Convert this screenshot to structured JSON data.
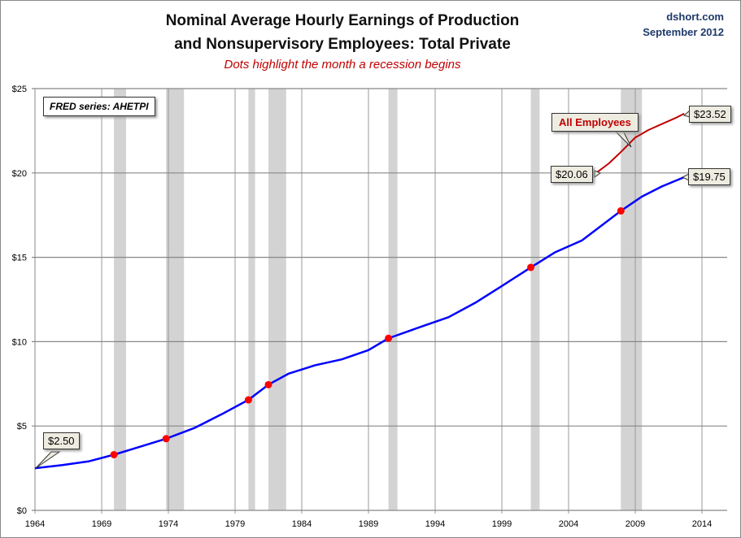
{
  "header": {
    "title_line1": "Nominal Average Hourly Earnings of Production",
    "title_line2": "and Nonsupervisory Employees: Total Private",
    "subtitle": "Dots highlight the month a recession begins",
    "source": "dshort.com",
    "date": "September 2012"
  },
  "fred_label": "FRED series: AHETPI",
  "callouts": {
    "start": "$2.50",
    "prod_end": "$19.75",
    "all_start": "$20.06",
    "all_end": "$23.52",
    "all_label": "All Employees"
  },
  "chart_data": {
    "type": "line",
    "title": "Nominal Average Hourly Earnings of Production and Nonsupervisory Employees: Total Private",
    "xlim": [
      1964,
      2014
    ],
    "ylim": [
      0,
      25
    ],
    "grid": true,
    "x_ticks": [
      "1964",
      "1969",
      "1974",
      "1979",
      "1984",
      "1989",
      "1994",
      "1999",
      "2004",
      "2009",
      "2014"
    ],
    "y_ticks": [
      "$0",
      "$5",
      "$10",
      "$15",
      "$20",
      "$25"
    ],
    "recessions": [
      [
        1969.92,
        1970.83
      ],
      [
        1973.83,
        1975.17
      ],
      [
        1980.0,
        1980.5
      ],
      [
        1981.5,
        1982.83
      ],
      [
        1990.5,
        1991.17
      ],
      [
        2001.17,
        2001.83
      ],
      [
        2007.92,
        2009.5
      ]
    ],
    "series": [
      {
        "name": "Production and Nonsupervisory",
        "color": "#0000ff",
        "x": [
          1964,
          1966,
          1968,
          1969.92,
          1972,
          1973.83,
          1976,
          1978,
          1980,
          1981.5,
          1983,
          1985,
          1987,
          1989,
          1990.5,
          1993,
          1995,
          1997,
          1999,
          2001.17,
          2003,
          2005,
          2007.92,
          2009.5,
          2011,
          2012.67
        ],
        "y": [
          2.5,
          2.68,
          2.9,
          3.3,
          3.8,
          4.25,
          4.9,
          5.7,
          6.55,
          7.45,
          8.1,
          8.6,
          8.95,
          9.5,
          10.2,
          10.9,
          11.45,
          12.3,
          13.3,
          14.4,
          15.3,
          16.0,
          17.75,
          18.6,
          19.2,
          19.75
        ]
      },
      {
        "name": "All Employees",
        "color": "#c00000",
        "x": [
          2006.17,
          2007,
          2008,
          2009,
          2010,
          2011,
          2012,
          2012.67
        ],
        "y": [
          20.06,
          20.55,
          21.3,
          22.1,
          22.55,
          22.9,
          23.25,
          23.52
        ]
      }
    ],
    "recession_start_dots": [
      [
        1969.92,
        3.3
      ],
      [
        1973.83,
        4.25
      ],
      [
        1980.0,
        6.55
      ],
      [
        1981.5,
        7.45
      ],
      [
        1990.5,
        10.2
      ],
      [
        2001.17,
        14.4
      ],
      [
        2007.92,
        17.75
      ]
    ]
  }
}
